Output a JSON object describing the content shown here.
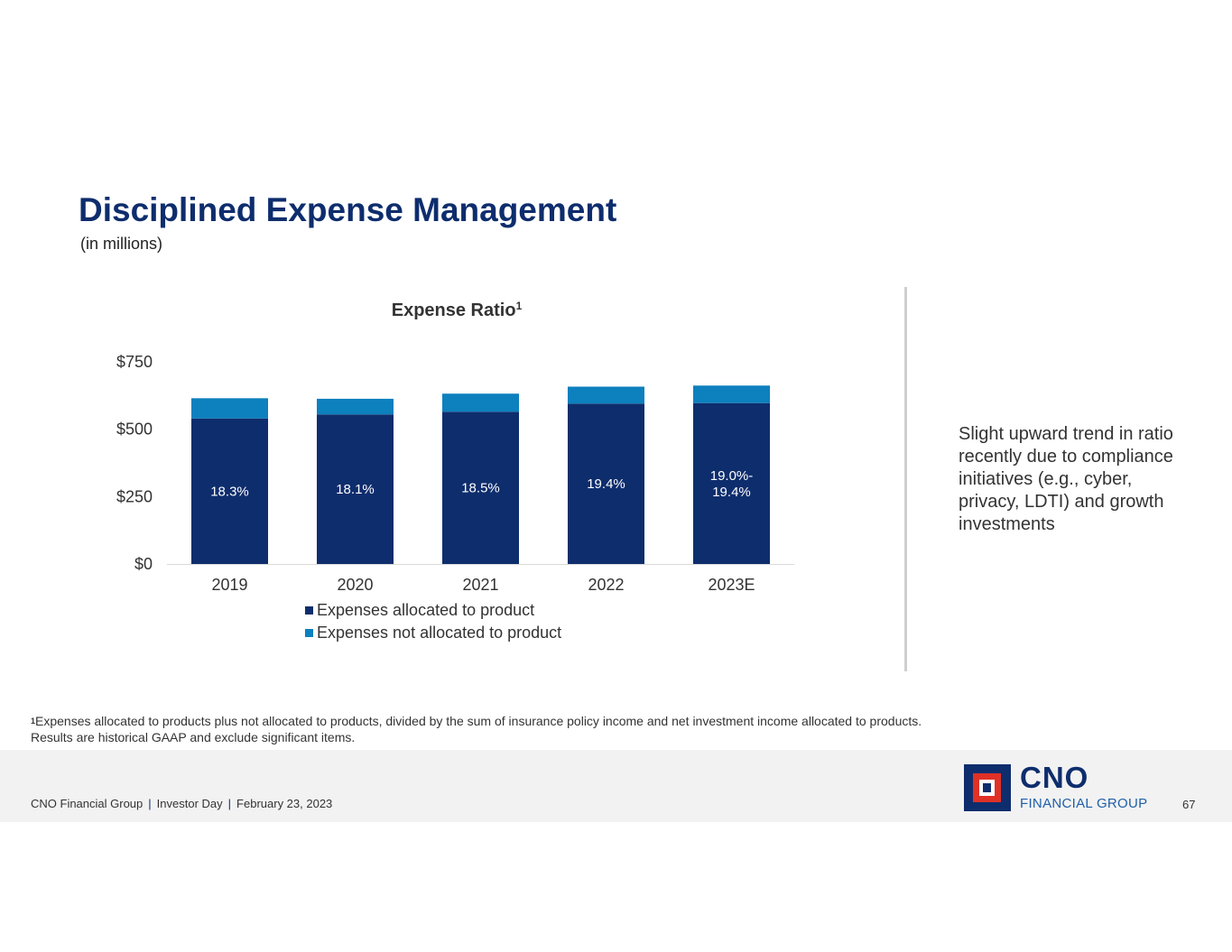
{
  "slide": {
    "title": "Disciplined Expense Management",
    "subtitle": "(in millions)",
    "side_text": "Slight upward trend in ratio recently due to compliance initiatives (e.g., cyber, privacy, LDTI) and growth investments",
    "footnote": {
      "marker": "1",
      "line1": "Expenses allocated to products plus not allocated to products, divided by the sum of insurance policy income and net investment income allocated to products.",
      "line2": "Results are historical GAAP and exclude significant items."
    }
  },
  "footer": {
    "company": "CNO Financial Group",
    "separator": "|",
    "event": "Investor Day",
    "date": "February 23, 2023",
    "page_number": "67",
    "logo_main": "CNO",
    "logo_sub": "FINANCIAL GROUP"
  },
  "colors": {
    "title": "#0e2d6d",
    "allocated": "#0e2d6d",
    "not_allocated": "#0d80be",
    "accent_red": "#e03127"
  },
  "chart_data": {
    "type": "bar",
    "stacked": true,
    "title": "Expense Ratio",
    "title_superscript": "1",
    "categories": [
      "2019",
      "2020",
      "2021",
      "2022",
      "2023E"
    ],
    "series": [
      {
        "name": "Expenses allocated to product",
        "color": "#0e2d6d",
        "values": [
          540,
          555,
          565,
          595,
          597
        ]
      },
      {
        "name": "Expenses not allocated to product",
        "color": "#0d80be",
        "values": [
          75,
          58,
          67,
          63,
          65
        ]
      }
    ],
    "data_labels": [
      "18.3%",
      "18.1%",
      "18.5%",
      "19.4%",
      "19.0%-\n19.4%"
    ],
    "y_ticks": [
      0,
      250,
      500,
      750
    ],
    "y_tick_labels": [
      "$0",
      "$250",
      "$500",
      "$750"
    ],
    "ylim": [
      0,
      750
    ],
    "legend_position": "bottom",
    "xlabel": "",
    "ylabel": ""
  }
}
